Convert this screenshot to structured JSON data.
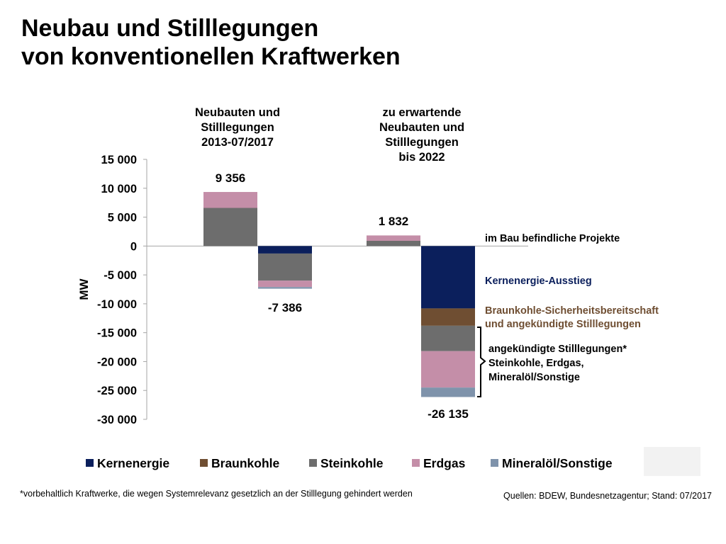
{
  "title_line1": "Neubau und Stilllegungen",
  "title_line2": "von konventionellen Kraftwerken",
  "footnote": "*vorbehaltlich Kraftwerke, die wegen Systemrelevanz gesetzlich an der Stilllegung gehindert werden",
  "sources": "Quellen: BDEW, Bundesnetzagentur; Stand: 07/2017",
  "colors": {
    "Kernenergie": "#0b1f5c",
    "Braunkohle": "#6f4e32",
    "Steinkohle": "#6d6d6d",
    "Erdgas": "#c48ea8",
    "Mineralöl/Sonstige": "#7f93ab"
  },
  "chart_data": {
    "type": "bar",
    "stacked": true,
    "ylabel": "MW",
    "ylim": [
      -30000,
      15000
    ],
    "yticks": [
      15000,
      10000,
      5000,
      0,
      -5000,
      -10000,
      -15000,
      -20000,
      -25000,
      -30000
    ],
    "ytick_labels": [
      "15 000",
      "10 000",
      "5 000",
      "0",
      "-5 000",
      "-10 000",
      "-15 000",
      "-20 000",
      "-25 000",
      "-30 000"
    ],
    "group_labels": [
      [
        "Neubauten und",
        "Stilllegungen",
        "2013-07/2017"
      ],
      [
        "zu erwartende",
        "Neubauten und",
        "Stilllegungen",
        "bis 2022"
      ]
    ],
    "bars": [
      {
        "segments": [
          {
            "series": "Steinkohle",
            "value": 6600
          },
          {
            "series": "Erdgas",
            "value": 2756
          }
        ],
        "total_label": "9 356"
      },
      {
        "segments": [
          {
            "series": "Kernenergie",
            "value": -1300
          },
          {
            "series": "Steinkohle",
            "value": -4700
          },
          {
            "series": "Erdgas",
            "value": -1100
          },
          {
            "series": "Mineralöl/Sonstige",
            "value": -286
          }
        ],
        "total_label": "-7 386"
      },
      {
        "segments": [
          {
            "series": "Steinkohle",
            "value": 900
          },
          {
            "series": "Erdgas",
            "value": 932
          }
        ],
        "total_label": "1 832"
      },
      {
        "segments": [
          {
            "series": "Kernenergie",
            "value": -10800
          },
          {
            "series": "Braunkohle",
            "value": -3000
          },
          {
            "series": "Steinkohle",
            "value": -4400
          },
          {
            "series": "Erdgas",
            "value": -6300
          },
          {
            "series": "Mineralöl/Sonstige",
            "value": -1635
          }
        ],
        "total_label": "-26 135"
      }
    ],
    "annotations": [
      {
        "text": "im Bau befindliche Projekte",
        "color": "#000000"
      },
      {
        "text": "Kernenergie-Ausstieg",
        "color": "#0b1f5c"
      },
      {
        "lines": [
          "Braunkohle-Sicherheitsbereitschaft",
          "und angekündigte Stilllegungen"
        ],
        "color": "#6f4e32"
      },
      {
        "lines": [
          "angekündigte Stilllegungen*",
          "Steinkohle, Erdgas,",
          "Mineralöl/Sonstige"
        ],
        "color": "#000000"
      }
    ],
    "legend": [
      "Kernenergie",
      "Braunkohle",
      "Steinkohle",
      "Erdgas",
      "Mineralöl/Sonstige"
    ],
    "legend_position": "bottom"
  }
}
